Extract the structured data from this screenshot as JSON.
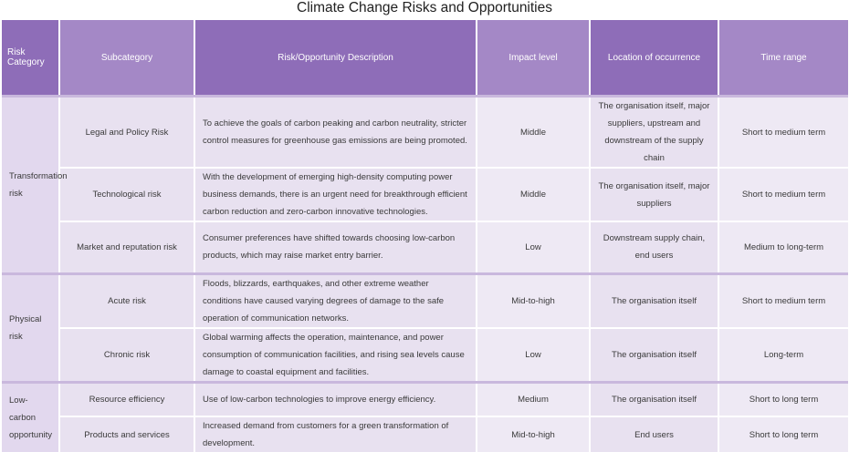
{
  "title": "Climate Change Risks and Opportunities",
  "headers": [
    "Risk Category",
    "Subcategory",
    "Risk/Opportunity Description",
    "Impact level",
    "Location of occurrence",
    "Time range"
  ],
  "groups": [
    {
      "category": "Transformation risk",
      "rows": [
        {
          "subcategory": "Legal and Policy Risk",
          "description": "To achieve the goals of carbon peaking and carbon neutrality, stricter control measures for greenhouse gas emissions are being promoted.",
          "impact": "Middle",
          "location": "The organisation itself, major suppliers, upstream and downstream of the supply chain",
          "time": "Short to medium term"
        },
        {
          "subcategory": "Technological risk",
          "description": "With the development of emerging high-density computing power business demands, there is an urgent need for breakthrough efficient carbon reduction and zero-carbon innovative technologies.",
          "impact": "Middle",
          "location": "The organisation itself, major suppliers",
          "time": "Short to medium term"
        },
        {
          "subcategory": "Market and reputation risk",
          "description": "Consumer preferences have shifted towards choosing low-carbon products, which may raise market entry barrier.",
          "impact": "Low",
          "location": "Downstream supply chain, end users",
          "time": "Medium to long-term"
        }
      ]
    },
    {
      "category": "Physical risk",
      "rows": [
        {
          "subcategory": "Acute risk",
          "description": "Floods, blizzards, earthquakes, and other extreme weather conditions have caused varying degrees of damage to the safe operation of communication networks.",
          "impact": "Mid-to-high",
          "location": "The organisation itself",
          "time": "Short to medium term"
        },
        {
          "subcategory": "Chronic risk",
          "description": "Global warming affects the operation, maintenance, and power consumption of communication facilities, and rising sea levels cause damage to coastal equipment and facilities.",
          "impact": "Low",
          "location": "The organisation itself",
          "time": "Long-term"
        }
      ]
    },
    {
      "category": "Low-carbon opportunity",
      "rows": [
        {
          "subcategory": "Resource efficiency",
          "description": "Use of low-carbon technologies to improve energy efficiency.",
          "impact": "Medium",
          "location": "The organisation itself",
          "time": "Short to long term"
        },
        {
          "subcategory": "Products and services",
          "description": "Increased demand from customers for a green transformation of development.",
          "impact": "Mid-to-high",
          "location": "End users",
          "time": "Short to long term"
        }
      ]
    }
  ]
}
